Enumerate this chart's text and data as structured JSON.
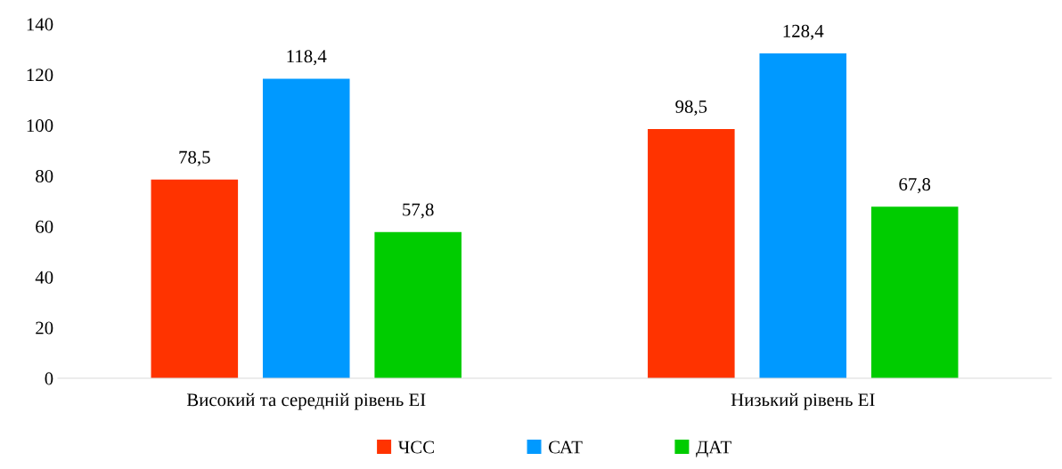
{
  "chart_data": {
    "type": "bar",
    "categories": [
      "Високий та середній рівень ЕІ",
      "Низький рівень ЕІ"
    ],
    "series": [
      {
        "name": "ЧСС",
        "color": "#ff3300",
        "values": [
          78.5,
          98.5
        ],
        "value_labels": [
          "78,5",
          "98,5"
        ]
      },
      {
        "name": "САТ",
        "color": "#0099ff",
        "values": [
          118.4,
          128.4
        ],
        "value_labels": [
          "118,4",
          "128,4"
        ]
      },
      {
        "name": "ДАТ",
        "color": "#00cc00",
        "values": [
          57.8,
          67.8
        ],
        "value_labels": [
          "57,8",
          "67,8"
        ]
      }
    ],
    "ylim": [
      0,
      140
    ],
    "yticks": [
      0,
      20,
      40,
      60,
      80,
      100,
      120,
      140
    ],
    "grid": false,
    "legend": "bottom"
  }
}
